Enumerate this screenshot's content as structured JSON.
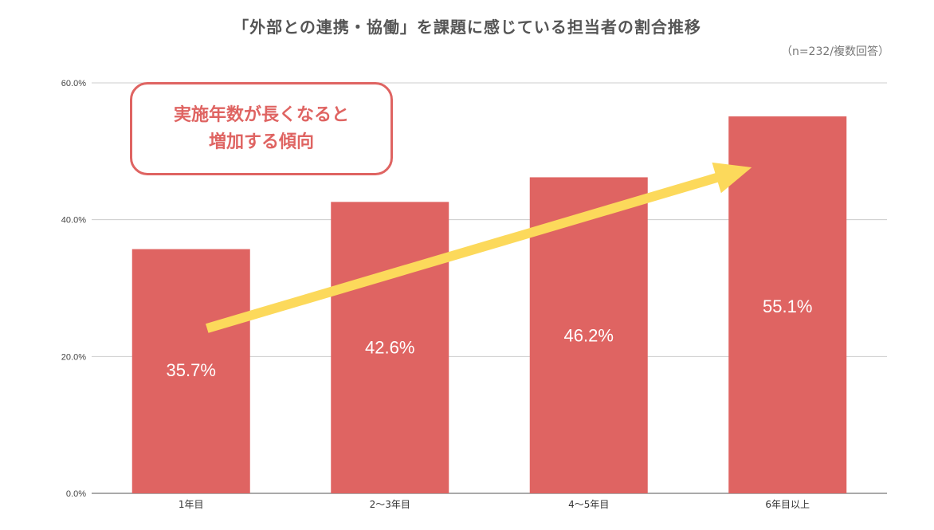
{
  "chart_data": {
    "type": "bar",
    "title": "「外部との連携・協働」を課題に感じている担当者の割合推移",
    "note": "（n=232/複数回答）",
    "categories": [
      "1年目",
      "2〜3年目",
      "4〜5年目",
      "6年目以上"
    ],
    "values": [
      35.7,
      42.6,
      46.2,
      55.1
    ],
    "value_labels": [
      "35.7%",
      "42.6%",
      "46.2%",
      "55.1%"
    ],
    "y_ticks": [
      "0.0%",
      "20.0%",
      "40.0%",
      "60.0%"
    ],
    "ylim": [
      0,
      60
    ],
    "grid": true,
    "bar_color": "#df6462",
    "arrow_color": "#fcd95b",
    "callout_color": "#df6462",
    "callout_lines": [
      "実施年数が長くなると",
      "増加する傾向"
    ]
  }
}
